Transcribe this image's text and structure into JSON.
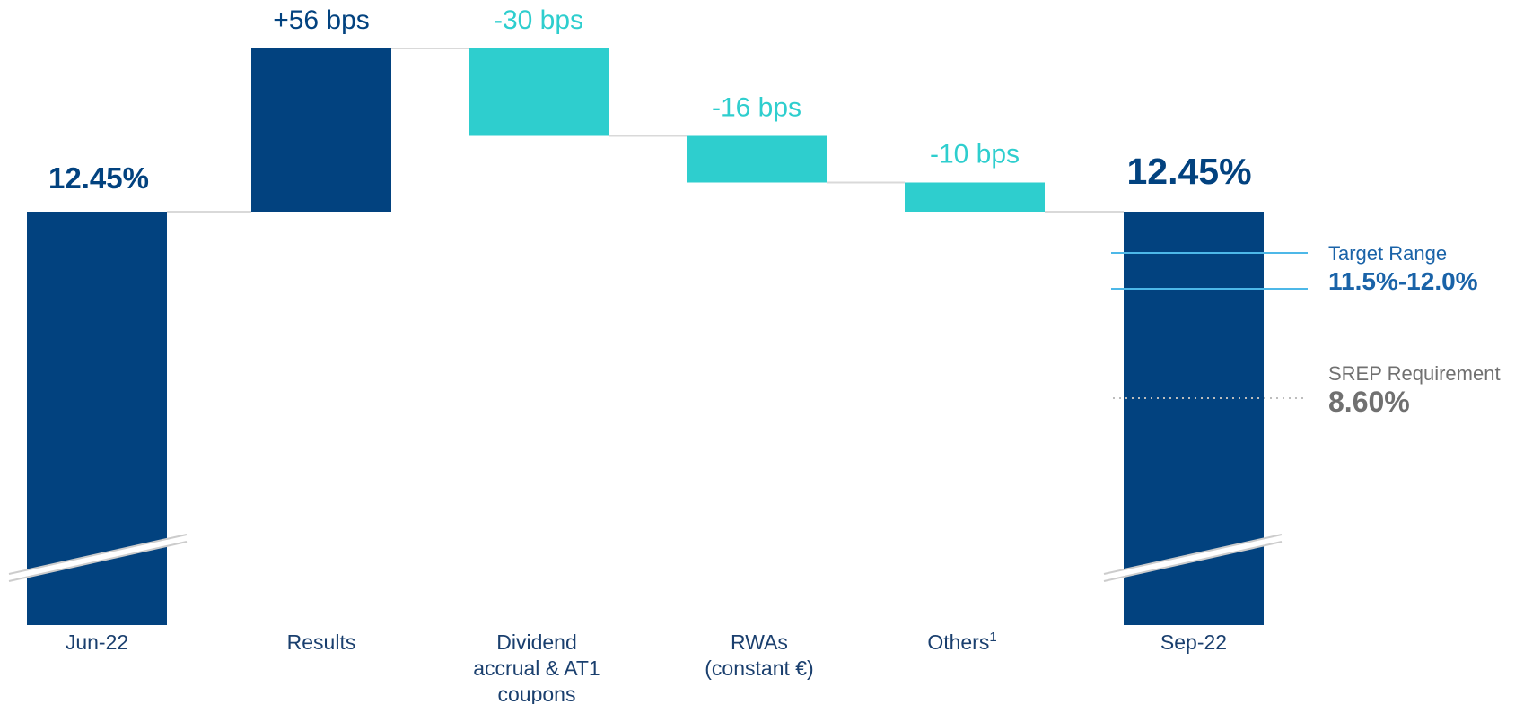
{
  "chart_data": {
    "type": "bar",
    "subtype": "waterfall",
    "categories": [
      "Jun-22",
      "Results",
      "Dividend accrual & AT1 coupons",
      "RWAs (constant €)",
      "Others",
      "Sep-22"
    ],
    "category_label_lines": [
      [
        "Jun-22"
      ],
      [
        "Results"
      ],
      [
        "Dividend",
        "accrual & AT1",
        "coupons"
      ],
      [
        "RWAs",
        "(constant €)"
      ],
      [
        "Others"
      ],
      [
        "Sep-22"
      ]
    ],
    "others_footnote": "1",
    "start": {
      "label": "12.45%",
      "value": 12.45
    },
    "steps": [
      {
        "label": "+56 bps",
        "value_bps": 56
      },
      {
        "label": "-30 bps",
        "value_bps": -30
      },
      {
        "label": "-16 bps",
        "value_bps": -16
      },
      {
        "label": "-10 bps",
        "value_bps": -10
      }
    ],
    "end": {
      "label": "12.45%",
      "value": 12.45
    },
    "y_axis_broken": true,
    "reference_lines": [
      {
        "title": "Target Range",
        "value_label": "11.5%-12.0%",
        "values": [
          12.0,
          11.5
        ],
        "style": "solid"
      },
      {
        "title": "SREP Requirement",
        "value_label": "8.60%",
        "values": [
          8.6
        ],
        "style": "dotted"
      }
    ],
    "colors": {
      "total": "#02427f",
      "increase": "#02427f",
      "decrease": "#2ecece",
      "connector": "#d9d9d9",
      "target": "#4db8e8",
      "target_text": "#1a63a8",
      "srep_text": "#707070",
      "srep_line": "#bdbdbd",
      "category_text": "#1a3f6e",
      "break_mark": "#cccccc"
    }
  }
}
